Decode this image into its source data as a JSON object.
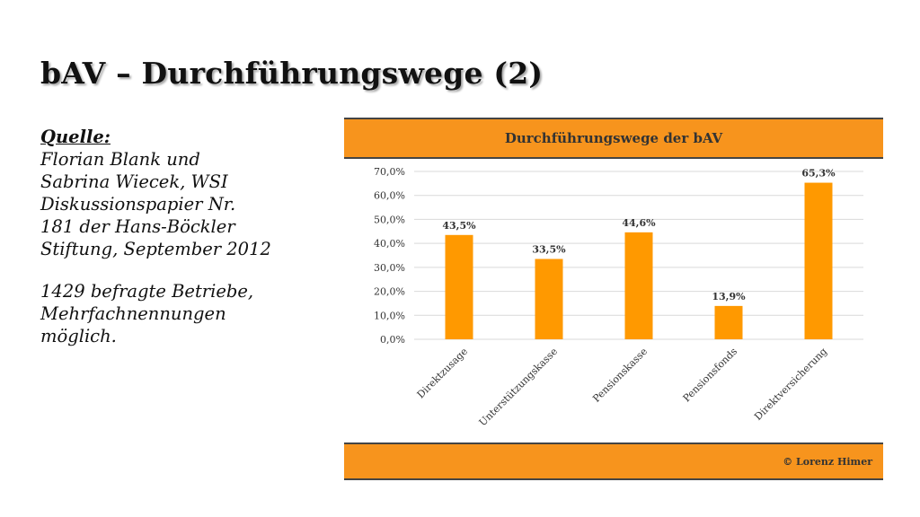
{
  "slide": {
    "title": "bAV – Durchführungswege (2)",
    "source_heading": "Quelle:",
    "source_lines": [
      "Florian Blank und",
      "Sabrina Wiecek, WSI",
      "Diskussionspapier Nr.",
      "181 der Hans-Böckler",
      "Stiftung, September 2012"
    ],
    "note_lines": [
      "1429 befragte Betriebe,",
      "Mehrfachnennungen",
      "möglich."
    ]
  },
  "chart_data": {
    "type": "bar",
    "title": "Durchführungswege der bAV",
    "categories": [
      "Direktzusage",
      "Unterstützungskasse",
      "Pensionskasse",
      "Pensionsfonds",
      "Direktversicherung"
    ],
    "values": [
      43.5,
      33.5,
      44.6,
      13.9,
      65.3
    ],
    "value_labels": [
      "43,5%",
      "33,5%",
      "44,6%",
      "13,9%",
      "65,3%"
    ],
    "y_ticks": [
      "0,0%",
      "10,0%",
      "20,0%",
      "30,0%",
      "40,0%",
      "50,0%",
      "60,0%",
      "70,0%"
    ],
    "ylim": [
      0,
      70
    ],
    "grid": true,
    "footer": "© Lorenz Himer",
    "colors": {
      "bar": "#ff9900",
      "header": "#f7941d",
      "grid": "#d9d9d9"
    }
  }
}
